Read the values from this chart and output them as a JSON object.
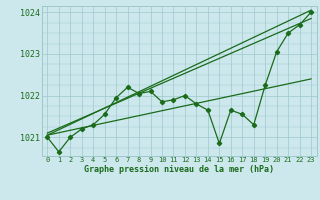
{
  "background_color": "#cce8ed",
  "grid_color": "#9ec8cc",
  "line_color": "#1a6b1a",
  "text_color": "#1a6b1a",
  "xlabel": "Graphe pression niveau de la mer (hPa)",
  "ylim": [
    1020.55,
    1024.15
  ],
  "xlim": [
    -0.5,
    23.5
  ],
  "yticks": [
    1021,
    1022,
    1023,
    1024
  ],
  "xticks": [
    0,
    1,
    2,
    3,
    4,
    5,
    6,
    7,
    8,
    9,
    10,
    11,
    12,
    13,
    14,
    15,
    16,
    17,
    18,
    19,
    20,
    21,
    22,
    23
  ],
  "series_x": [
    0,
    1,
    2,
    3,
    4,
    5,
    6,
    7,
    8,
    9,
    10,
    11,
    12,
    13,
    14,
    15,
    16,
    17,
    18,
    19,
    20,
    21,
    22,
    23
  ],
  "series_y": [
    1021.0,
    1020.65,
    1021.0,
    1021.2,
    1021.3,
    1021.55,
    1021.95,
    1022.2,
    1022.05,
    1022.1,
    1021.85,
    1021.9,
    1022.0,
    1021.8,
    1021.65,
    1020.85,
    1021.65,
    1021.55,
    1021.3,
    1022.25,
    1023.05,
    1023.5,
    1023.7,
    1024.0
  ],
  "trend1_x": [
    0,
    23
  ],
  "trend1_y": [
    1021.05,
    1024.05
  ],
  "trend2_x": [
    0,
    23
  ],
  "trend2_y": [
    1021.05,
    1022.4
  ],
  "trend3_x": [
    0,
    23
  ],
  "trend3_y": [
    1021.1,
    1023.85
  ]
}
